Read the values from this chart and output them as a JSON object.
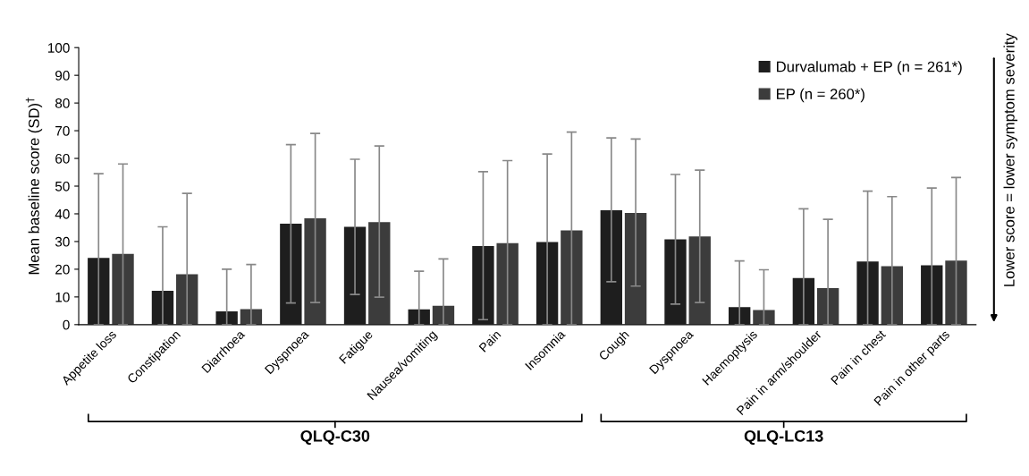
{
  "chart_data": {
    "type": "bar",
    "ylabel": "Mean baseline score (SD)$^{†}$",
    "categories": [
      "Appetite loss",
      "Constipation",
      "Diarrhoea",
      "Dyspnoea",
      "Fatigue",
      "Nausea/vomiting",
      "Pain",
      "Insomnia",
      "Cough",
      "Dyspnoea",
      "Haemoptysis",
      "Pain in arm/shoulder",
      "Pain in chest",
      "Pain in other parts"
    ],
    "series": [
      {
        "name": "Durvalumab + EP (n = 261*)",
        "color": "#1e1e1e",
        "values": [
          24.1,
          12.2,
          4.8,
          36.4,
          35.3,
          5.5,
          28.4,
          29.8,
          41.3,
          30.8,
          6.3,
          16.8,
          22.8,
          21.4
        ],
        "errors": [
          [
            0,
            54.5
          ],
          [
            0,
            35.3
          ],
          [
            0,
            20
          ],
          [
            7.8,
            65
          ],
          [
            10.9,
            59.7
          ],
          [
            0,
            19.3
          ],
          [
            1.8,
            55.2
          ],
          [
            0,
            61.6
          ],
          [
            15.5,
            67.4
          ],
          [
            7.4,
            54.2
          ],
          [
            0,
            23
          ],
          [
            0,
            41.8
          ],
          [
            0,
            48.2
          ],
          [
            0,
            49.3
          ]
        ]
      },
      {
        "name": "EP (n = 260*)",
        "color": "#3c3c3c",
        "values": [
          25.5,
          18.2,
          5.6,
          38.4,
          37,
          6.8,
          29.4,
          34,
          40.3,
          31.8,
          5.3,
          13.2,
          21.1,
          23.1
        ],
        "errors": [
          [
            0,
            58
          ],
          [
            0,
            47.4
          ],
          [
            0,
            21.7
          ],
          [
            8,
            69
          ],
          [
            9.9,
            64.5
          ],
          [
            0,
            23.7
          ],
          [
            0,
            59.2
          ],
          [
            0,
            69.5
          ],
          [
            13.9,
            67
          ],
          [
            8,
            55.8
          ],
          [
            0,
            19.8
          ],
          [
            0,
            38
          ],
          [
            0,
            46.2
          ],
          [
            0,
            53.1
          ]
        ]
      }
    ],
    "ylim": [
      0,
      100
    ],
    "yticks": [
      0,
      10,
      20,
      30,
      40,
      50,
      60,
      70,
      80,
      90,
      100
    ],
    "grid": false,
    "legend": "top right",
    "annotations": [
      "QLQ-C30",
      "QLQ-LC13",
      "Lower score = lower symptom severity"
    ]
  }
}
